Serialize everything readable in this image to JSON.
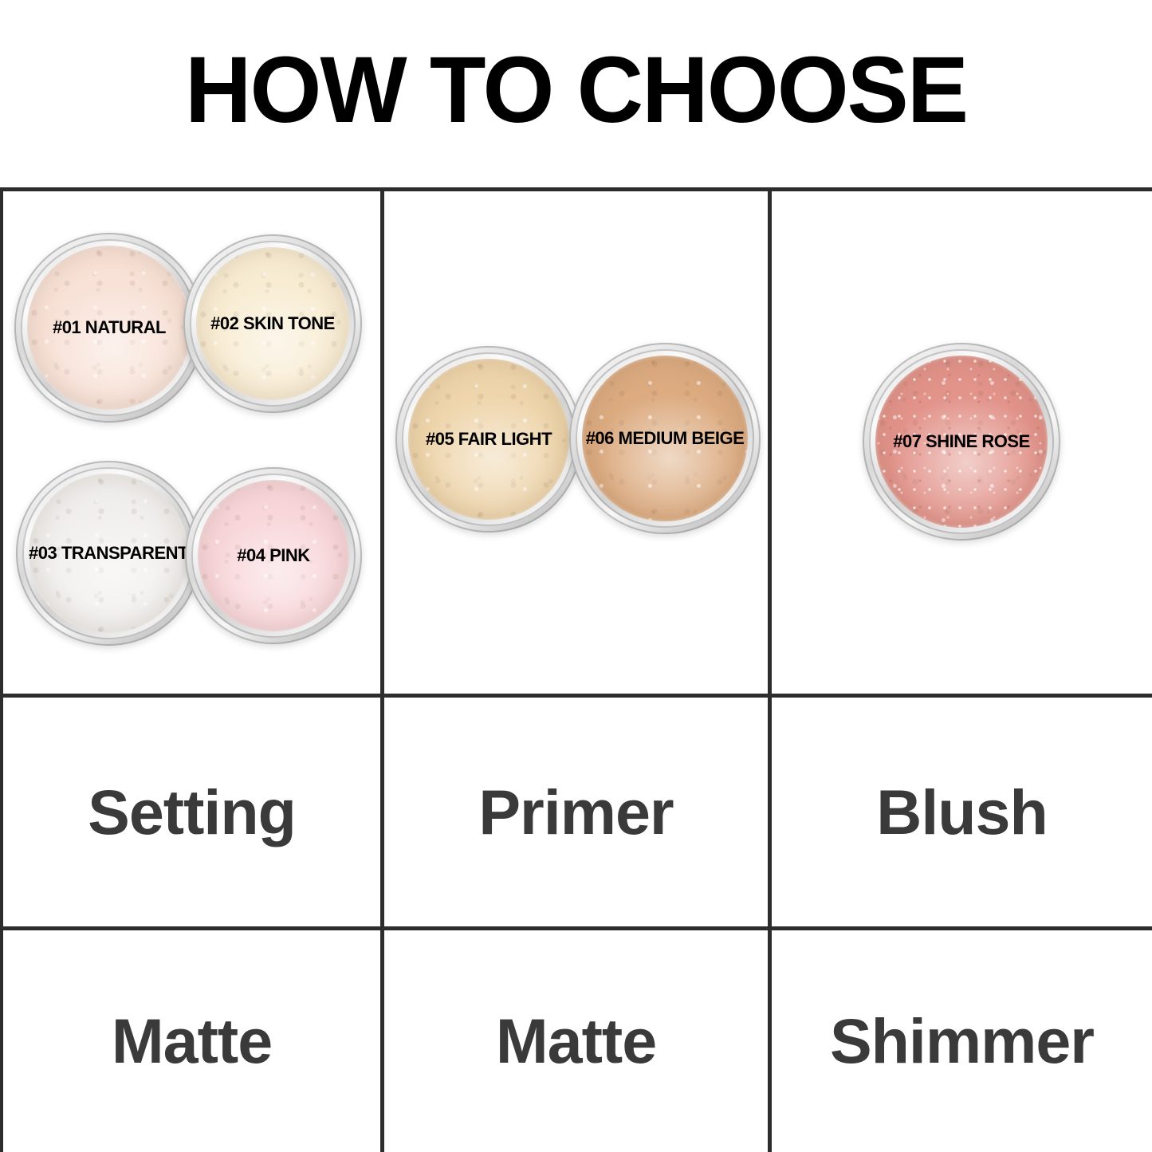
{
  "title": "HOW TO CHOOSE",
  "table": {
    "columns": [
      {
        "use": "Setting",
        "finish": "Matte",
        "shades": [
          {
            "label": "#01 NATURAL",
            "color": "#f8e1d6"
          },
          {
            "label": "#02 SKIN TONE",
            "color": "#f8ecd2"
          },
          {
            "label": "#03 TRANSPARENT",
            "color": "#f0efed"
          },
          {
            "label": "#04 PINK",
            "color": "#f8d6da"
          }
        ]
      },
      {
        "use": "Primer",
        "finish": "Matte",
        "shades": [
          {
            "label": "#05 FAIR LIGHT",
            "color": "#eed5ab"
          },
          {
            "label": "#06 MEDIUM BEIGE",
            "color": "#dcab80"
          }
        ]
      },
      {
        "use": "Blush",
        "finish": "Shimmer",
        "shades": [
          {
            "label": "#07 SHINE ROSE",
            "color": "#e2938a"
          }
        ]
      }
    ]
  },
  "style": {
    "grid_line_color": "#2d2d2d",
    "title_color": "#000000",
    "row_text_color": "#3a3a3a",
    "background": "#ffffff"
  }
}
